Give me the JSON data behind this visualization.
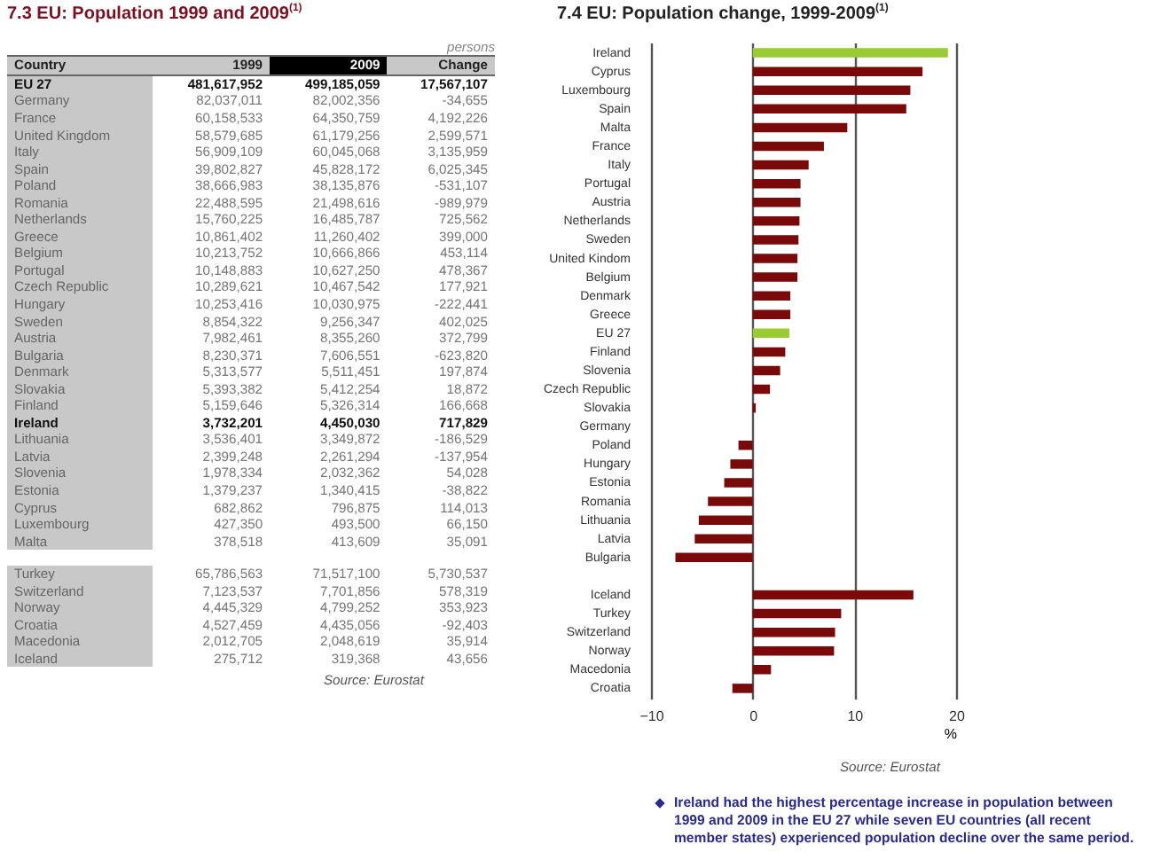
{
  "chart_data": [
    {
      "type": "other",
      "title": "7.3 EU: Population 1999 and 2009$^{(1)}$",
      "annotations": [
        "persons",
        "Country",
        "1999",
        "2009",
        "Change",
        "EU 27",
        "481,617,952",
        "499,185,059",
        "17,567,107",
        "Germany",
        "82,037,011",
        "82,002,356",
        "-34,655",
        "France",
        "60,158,533",
        "64,350,759",
        "4,192,226",
        "United Kingdom",
        "58,579,685",
        "61,179,256",
        "2,599,571",
        "Italy",
        "56,909,109",
        "60,045,068",
        "3,135,959",
        "Spain",
        "39,802,827",
        "45,828,172",
        "6,025,345",
        "Poland",
        "38,666,983",
        "38,135,876",
        "-531,107",
        "Romania",
        "22,488,595",
        "21,498,616",
        "-989,979",
        "Netherlands",
        "15,760,225",
        "16,485,787",
        "725,562",
        "Greece",
        "10,861,402",
        "11,260,402",
        "399,000",
        "Belgium",
        "10,213,752",
        "10,666,866",
        "453,114",
        "Portugal",
        "10,148,883",
        "10,627,250",
        "478,367",
        "Czech Republic",
        "10,289,621",
        "10,467,542",
        "177,921",
        "Hungary",
        "10,253,416",
        "10,030,975",
        "-222,441",
        "Sweden",
        "8,854,322",
        "9,256,347",
        "402,025",
        "Austria",
        "7,982,461",
        "8,355,260",
        "372,799",
        "Bulgaria",
        "8,230,371",
        "7,606,551",
        "-623,820",
        "Denmark",
        "5,313,577",
        "5,511,451",
        "197,874",
        "Slovakia",
        "5,393,382",
        "5,412,254",
        "18,872",
        "Finland",
        "5,159,646",
        "5,326,314",
        "166,668",
        "Ireland",
        "3,732,201",
        "4,450,030",
        "717,829",
        "Lithuania",
        "3,536,401",
        "3,349,872",
        "-186,529",
        "Latvia",
        "2,399,248",
        "2,261,294",
        "-137,954",
        "Slovenia",
        "1,978,334",
        "2,032,362",
        "54,028",
        "Estonia",
        "1,379,237",
        "1,340,415",
        "-38,822",
        "Cyprus",
        "682,862",
        "796,875",
        "114,013",
        "Luxembourg",
        "427,350",
        "493,500",
        "66,150",
        "Malta",
        "378,518",
        "413,609",
        "35,091",
        "Turkey",
        "65,786,563",
        "71,517,100",
        "5,730,537",
        "Switzerland",
        "7,123,537",
        "7,701,856",
        "578,319",
        "Norway",
        "4,445,329",
        "4,799,252",
        "353,923",
        "Croatia",
        "4,527,459",
        "4,435,056",
        "-92,403",
        "Macedonia",
        "2,012,705",
        "2,048,619",
        "35,914",
        "Iceland",
        "275,712",
        "319,368",
        "43,656",
        "Source: Eurostat"
      ]
    },
    {
      "type": "bar",
      "orientation": "horizontal",
      "title": "7.4 EU: Population change, 1999-2009$^{(1)}$",
      "categories": [
        "Ireland",
        "Cyprus",
        "Luxembourg",
        "Spain",
        "Malta",
        "France",
        "Italy",
        "Portugal",
        "Austria",
        "Netherlands",
        "Sweden",
        "United Kindom",
        "Belgium",
        "Denmark",
        "Greece",
        "EU 27",
        "Finland",
        "Slovenia",
        "Czech Republic",
        "Slovakia",
        "Germany",
        "Poland",
        "Hungary",
        "Estonia",
        "Romania",
        "Lithuania",
        "Latvia",
        "Bulgaria",
        null,
        "Iceland",
        "Turkey",
        "Switzerland",
        "Norway",
        "Macedonia",
        "Croatia"
      ],
      "values": [
        19.2,
        16.7,
        15.5,
        15.1,
        9.3,
        7.0,
        5.5,
        4.7,
        4.7,
        4.6,
        4.5,
        4.4,
        4.4,
        3.7,
        3.7,
        3.6,
        3.2,
        2.7,
        1.7,
        0.3,
        0,
        -1.4,
        -2.2,
        -2.8,
        -4.4,
        -5.3,
        -5.7,
        -7.6,
        null,
        15.8,
        8.7,
        8.1,
        8.0,
        1.8,
        -2.0
      ],
      "colors": [
        "#99cc33",
        "#7a0a0a",
        "#7a0a0a",
        "#7a0a0a",
        "#7a0a0a",
        "#7a0a0a",
        "#7a0a0a",
        "#7a0a0a",
        "#7a0a0a",
        "#7a0a0a",
        "#7a0a0a",
        "#7a0a0a",
        "#7a0a0a",
        "#7a0a0a",
        "#7a0a0a",
        "#99cc33",
        "#7a0a0a",
        "#7a0a0a",
        "#7a0a0a",
        "#7a0a0a",
        "#7a0a0a",
        "#7a0a0a",
        "#7a0a0a",
        "#7a0a0a",
        "#7a0a0a",
        "#7a0a0a",
        "#7a0a0a",
        "#7a0a0a",
        null,
        "#7a0a0a",
        "#7a0a0a",
        "#7a0a0a",
        "#7a0a0a",
        "#7a0a0a",
        "#7a0a0a"
      ],
      "xlim": [
        -10,
        20
      ],
      "xticks": [
        -10,
        0,
        10,
        20
      ],
      "xlabel": "%",
      "grid": "x",
      "annotations": [
        "Source: Eurostat",
        "Ireland had the highest percentage increase in population between 1999 and 2009 in the EU 27 while seven EU countries (all recent member states) experienced population decline over the same period."
      ]
    }
  ]
}
